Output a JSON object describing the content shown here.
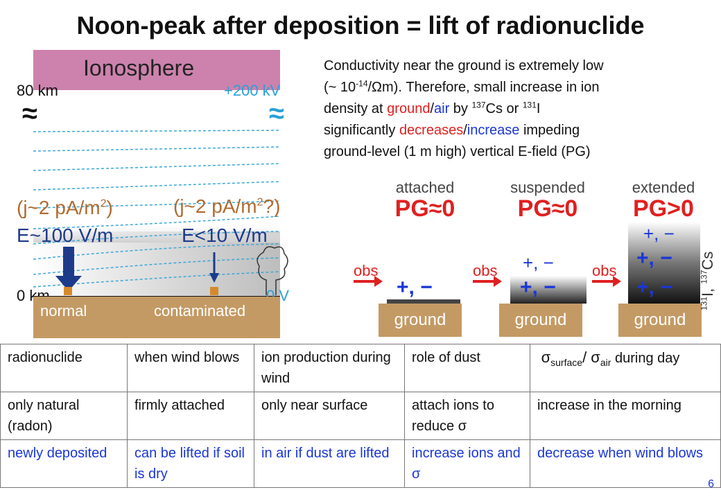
{
  "slide": {
    "title": "Noon-peak after deposition = lift of radionuclide",
    "page_number": "6"
  },
  "description": {
    "line1": "Conductivity near the ground is extremely low",
    "line2_a": "(~ 10",
    "line2_exp": "-14",
    "line2_b": "/Ωm). Therefore, small increase in ion",
    "line3_a": "density at ",
    "line3_ground": "ground",
    "line3_slash": "/",
    "line3_air": "air",
    "line3_b": " by ",
    "line3_cs_mass": "137",
    "line3_cs": "Cs or ",
    "line3_i_mass": "131",
    "line3_i": "I",
    "line4_a": "significantly ",
    "line4_decreases": "decreases",
    "line4_slash": "/",
    "line4_increase": "increase",
    "line4_b": " impeding",
    "line5": "ground-level (1 m high) vertical E-field (PG)"
  },
  "left_diagram": {
    "ionosphere": "Ionosphere",
    "altitude_top": "80 km",
    "potential_top": "+200 kV",
    "current_normal": "(j~2 pA/m2)",
    "current_contaminated": "(j~2 pA/m2?)",
    "field_normal": "E~100 V/m",
    "field_contaminated": "E<10 V/m",
    "altitude_ground": "0 km",
    "potential_ground": "0 V",
    "ground_normal": "normal",
    "ground_contaminated": "contaminated"
  },
  "right_diagram": {
    "panels": [
      {
        "title": "attached",
        "pg": "PG≈0",
        "ground": "ground",
        "obs": "obs"
      },
      {
        "title": "suspended",
        "pg": "PG≈0",
        "ground": "ground",
        "obs": "obs"
      },
      {
        "title": "extended",
        "pg": "PG>0",
        "ground": "ground",
        "obs": "obs"
      }
    ],
    "ions": "+, −",
    "isotope_label_a_mass": "131",
    "isotope_label_a": "I, ",
    "isotope_label_b_mass": "137",
    "isotope_label_b": "Cs"
  },
  "table": {
    "header": [
      "radionuclide",
      "when wind blows",
      "ion production during wind",
      "role of dust"
    ],
    "header_sigma": {
      "sigma": "σ",
      "sub1": "surface",
      "slash": "/ ",
      "sub2": "air",
      "tail": " during day"
    },
    "row_natural": [
      "only natural (radon)",
      "firmly attached",
      "only near surface",
      "attach ions to reduce σ",
      "increase in the morning"
    ],
    "row_deposited": [
      "newly deposited",
      "can be lifted if soil is dry",
      "in air if dust are lifted",
      "increase ions and σ",
      "decrease when wind blows"
    ]
  },
  "colors": {
    "ionosphere": "#cc82ac",
    "ground": "#c49a64",
    "accent_red": "#e02020",
    "accent_blue": "#1a36d8",
    "potential_cyan": "#2aa0d8"
  }
}
